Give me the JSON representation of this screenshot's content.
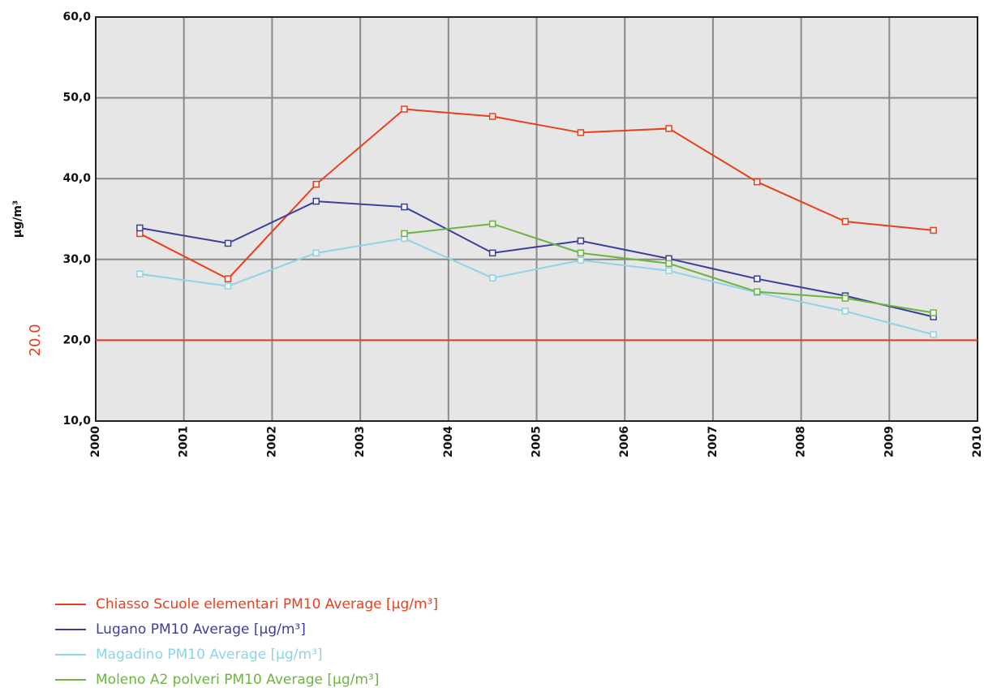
{
  "chart_data": {
    "type": "line",
    "y_label": "µg/m³",
    "x": [
      2000.5,
      2001.5,
      2002.5,
      2003.5,
      2004.5,
      2005.5,
      2006.5,
      2007.5,
      2008.5,
      2009.5
    ],
    "series": [
      {
        "name": "Chiasso Scuole elementari  PM10 Average [µg/m³]",
        "color": "#e8401c",
        "values": [
          33.2,
          27.6,
          39.3,
          48.6,
          47.7,
          45.7,
          46.2,
          39.6,
          34.7,
          33.6
        ]
      },
      {
        "name": "Lugano  PM10 Average [µg/m³]",
        "color": "#3b3f9a",
        "values": [
          33.9,
          32.0,
          37.2,
          36.5,
          30.8,
          32.3,
          30.1,
          27.6,
          25.5,
          22.9
        ]
      },
      {
        "name": "Magadino  PM10 Average [µg/m³]",
        "color": "#8fd3e6",
        "values": [
          28.2,
          26.7,
          30.8,
          32.6,
          27.7,
          29.9,
          28.6,
          25.9,
          23.6,
          20.7
        ]
      },
      {
        "name": "Moleno A2 polveri PM10 Average [µg/m³]",
        "color": "#6db33f",
        "values": [
          null,
          null,
          null,
          33.2,
          34.4,
          30.8,
          29.5,
          26.0,
          25.2,
          23.4
        ]
      }
    ],
    "xlim": [
      2000,
      2010
    ],
    "xticks": [
      2000,
      2001,
      2002,
      2003,
      2004,
      2005,
      2006,
      2007,
      2008,
      2009,
      2010
    ],
    "ylim": [
      10,
      60
    ],
    "yticks": [
      {
        "value": 10,
        "label": "10,0"
      },
      {
        "value": 20,
        "label": "20,0"
      },
      {
        "value": 30,
        "label": "30,0"
      },
      {
        "value": 40,
        "label": "40,0"
      },
      {
        "value": 50,
        "label": "50,0"
      },
      {
        "value": 60,
        "label": "60,0"
      }
    ],
    "threshold": {
      "value": 20,
      "label": "20.0",
      "color": "#e8401c"
    },
    "grid": true,
    "legend": "bottom-left"
  }
}
